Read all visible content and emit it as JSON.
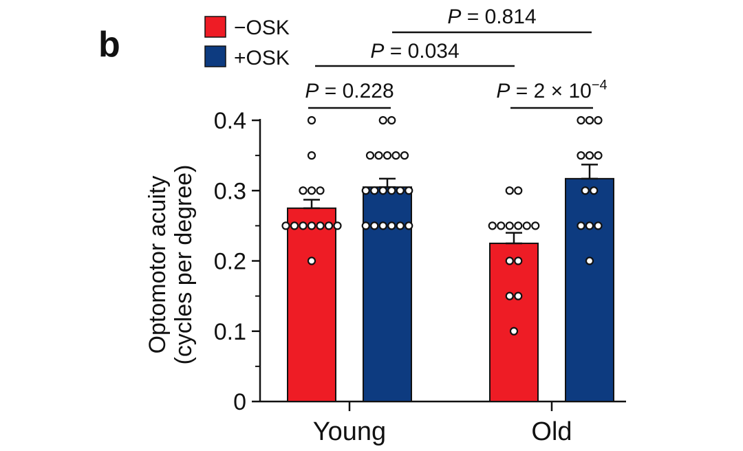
{
  "panel_label": "b",
  "chart_data": {
    "type": "bar",
    "title": "",
    "ylabel_line1": "Optomotor acuity",
    "ylabel_line2": "(cycles per degree)",
    "xlabel": "",
    "ylim": [
      0,
      0.4
    ],
    "yticks": [
      0,
      0.1,
      0.2,
      0.3,
      0.4
    ],
    "ytick_labels": [
      "0",
      "0.1",
      "0.2",
      "0.3",
      "0.4"
    ],
    "categories": [
      "Young",
      "Old"
    ],
    "series": [
      {
        "name": "−OSK",
        "color": "#ee1c25",
        "values": [
          0.275,
          0.225
        ],
        "sem": [
          0.012,
          0.015
        ],
        "points": [
          [
            0.4,
            0.35,
            0.3,
            0.3,
            0.3,
            0.25,
            0.25,
            0.25,
            0.25,
            0.25,
            0.25,
            0.25,
            0.2
          ],
          [
            0.3,
            0.3,
            0.25,
            0.25,
            0.25,
            0.25,
            0.25,
            0.25,
            0.2,
            0.2,
            0.15,
            0.15,
            0.1
          ]
        ]
      },
      {
        "name": "+OSK",
        "color": "#0d3b80",
        "values": [
          0.305,
          0.317
        ],
        "sem": [
          0.012,
          0.02
        ],
        "points": [
          [
            0.4,
            0.4,
            0.35,
            0.35,
            0.35,
            0.35,
            0.35,
            0.3,
            0.3,
            0.3,
            0.3,
            0.3,
            0.3,
            0.25,
            0.25,
            0.25,
            0.25,
            0.25,
            0.25
          ],
          [
            0.4,
            0.4,
            0.4,
            0.35,
            0.35,
            0.35,
            0.3,
            0.3,
            0.25,
            0.25,
            0.25,
            0.2
          ]
        ]
      }
    ],
    "legend_position": "top-left",
    "comparisons": [
      {
        "label_p": "P",
        "label_rest": " = 0.228",
        "from": "Young −OSK",
        "to": "Young +OSK"
      },
      {
        "label_p": "P",
        "label_rest": " = 2 × 10",
        "label_exp": "−4",
        "from": "Old −OSK",
        "to": "Old +OSK"
      },
      {
        "label_p": "P",
        "label_rest": " = 0.034",
        "from": "Young −OSK",
        "to": "Old −OSK"
      },
      {
        "label_p": "P",
        "label_rest": " = 0.814",
        "from": "Young +OSK",
        "to": "Old +OSK"
      }
    ]
  }
}
